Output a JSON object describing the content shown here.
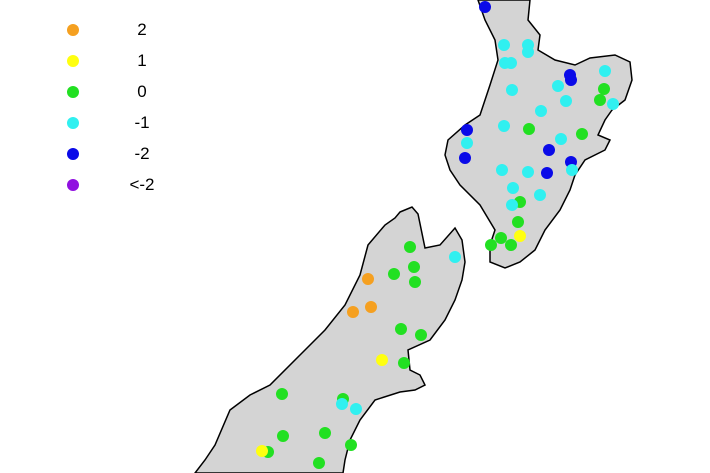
{
  "legend": {
    "items": [
      {
        "label": "2",
        "value": 2,
        "color": "#f5a020"
      },
      {
        "label": "1",
        "value": 1,
        "color": "#ffff10"
      },
      {
        "label": "0",
        "value": 0,
        "color": "#22e022"
      },
      {
        "label": "-1",
        "value": -1,
        "color": "#30f0f0"
      },
      {
        "label": "-2",
        "value": -2,
        "color": "#0a0ae8"
      },
      {
        "label": "<-2",
        "value": -3,
        "color": "#9010e0"
      }
    ]
  },
  "map": {
    "land_color": "#d4d4d4",
    "coast_color": "#000000",
    "region": "New Zealand"
  }
}
